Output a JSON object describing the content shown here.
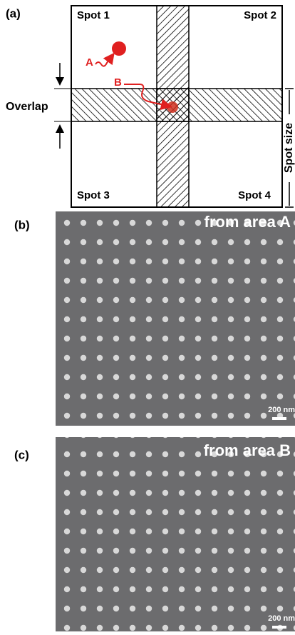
{
  "panels": [
    {
      "label": "(a)",
      "spots": [
        "Spot 1",
        "Spot 2",
        "Spot 3",
        "Spot 4"
      ],
      "overlap": "Overlap",
      "spot_size": "Spot size",
      "points": [
        "A",
        "B"
      ]
    },
    {
      "label": "(b)",
      "caption": "from area A",
      "scale_bar": "200 nm"
    },
    {
      "label": "(c)",
      "caption": "from area B",
      "scale_bar": "200 nm"
    }
  ]
}
